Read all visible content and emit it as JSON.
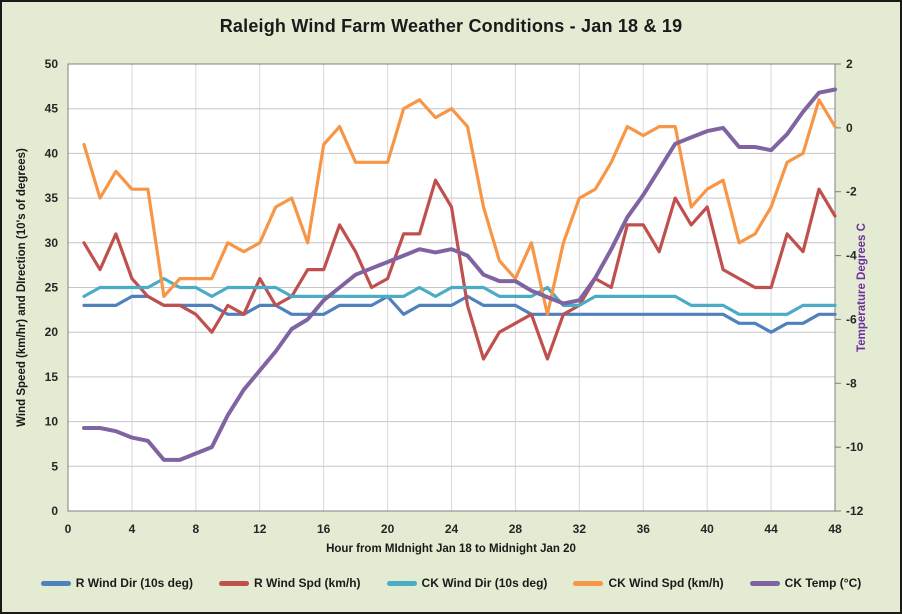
{
  "title": "Raleigh Wind Farm Weather Conditions - Jan 18 & 19",
  "colors": {
    "background": "#e3ebd3",
    "plot_background": "#ffffff",
    "plot_border": "#808080",
    "grid_horizontal": "#c6c6c6",
    "grid_vertical": "#d8d8d8",
    "tick_text": "#262626",
    "title_text": "#1a1a1a",
    "right_axis_label": "#7030a0"
  },
  "chart_data": {
    "type": "line",
    "title": "Raleigh Wind Farm Weather Conditions - Jan 18 & 19",
    "xlabel": "Hour from MIdnight Jan 18 to Midnight Jan 20",
    "ylabel_left": "Wind Speed (km/hr) and DIrection (10's of degrees)",
    "ylabel_right": "Temperature Degrees C",
    "grid": true,
    "legend_position": "bottom",
    "xlim": [
      0,
      48
    ],
    "ylim_left": [
      0,
      50
    ],
    "ylim_right": [
      -12,
      2
    ],
    "x_ticks": [
      0,
      4,
      8,
      12,
      16,
      20,
      24,
      28,
      32,
      36,
      40,
      44,
      48
    ],
    "y_ticks_left": [
      0,
      5,
      10,
      15,
      20,
      25,
      30,
      35,
      40,
      45,
      50
    ],
    "y_ticks_right": [
      2,
      0,
      -2,
      -4,
      -6,
      -8,
      -10,
      -12
    ],
    "x": [
      1,
      2,
      3,
      4,
      5,
      6,
      7,
      8,
      9,
      10,
      11,
      12,
      13,
      14,
      15,
      16,
      17,
      18,
      19,
      20,
      21,
      22,
      23,
      24,
      25,
      26,
      27,
      28,
      29,
      30,
      31,
      32,
      33,
      34,
      35,
      36,
      37,
      38,
      39,
      40,
      41,
      42,
      43,
      44,
      45,
      46,
      47,
      48
    ],
    "series": [
      {
        "name": "R Wind Dir (10s deg)",
        "color": "#4f81bd",
        "axis": "left",
        "values": [
          23,
          23,
          23,
          24,
          24,
          23,
          23,
          23,
          23,
          22,
          22,
          23,
          23,
          22,
          22,
          22,
          23,
          23,
          23,
          24,
          22,
          23,
          23,
          23,
          24,
          23,
          23,
          23,
          22,
          22,
          22,
          22,
          22,
          22,
          22,
          22,
          22,
          22,
          22,
          22,
          22,
          21,
          21,
          20,
          21,
          21,
          22,
          22
        ]
      },
      {
        "name": "R Wind Spd (km/h)",
        "color": "#c0504d",
        "axis": "left",
        "values": [
          30,
          27,
          31,
          26,
          24,
          23,
          23,
          22,
          20,
          23,
          22,
          26,
          23,
          24,
          27,
          27,
          32,
          29,
          25,
          26,
          31,
          31,
          37,
          34,
          23,
          17,
          20,
          21,
          22,
          17,
          22,
          23,
          26,
          25,
          32,
          32,
          29,
          35,
          32,
          34,
          27,
          26,
          25,
          25,
          31,
          29,
          36,
          33
        ]
      },
      {
        "name": "CK Wind Dir (10s deg)",
        "color": "#4bacc6",
        "axis": "left",
        "values": [
          24,
          25,
          25,
          25,
          25,
          26,
          25,
          25,
          24,
          25,
          25,
          25,
          25,
          24,
          24,
          24,
          24,
          24,
          24,
          24,
          24,
          25,
          24,
          25,
          25,
          25,
          24,
          24,
          24,
          25,
          23,
          23,
          24,
          24,
          24,
          24,
          24,
          24,
          23,
          23,
          23,
          22,
          22,
          22,
          22,
          23,
          23,
          23
        ]
      },
      {
        "name": "CK Wind Spd (km/h)",
        "color": "#f79646",
        "axis": "left",
        "values": [
          41,
          35,
          38,
          36,
          36,
          24,
          26,
          26,
          26,
          30,
          29,
          30,
          34,
          35,
          30,
          41,
          43,
          39,
          39,
          39,
          45,
          46,
          44,
          45,
          43,
          34,
          28,
          26,
          30,
          22,
          30,
          35,
          36,
          39,
          43,
          42,
          43,
          43,
          34,
          36,
          37,
          30,
          31,
          34,
          39,
          40,
          46,
          43
        ]
      },
      {
        "name": "CK Temp (°C)",
        "color": "#8064a2",
        "axis": "right",
        "values": [
          -9.4,
          -9.4,
          -9.5,
          -9.7,
          -9.8,
          -10.4,
          -10.4,
          -10.2,
          -10,
          -9,
          -8.2,
          -7.6,
          -7,
          -6.3,
          -6,
          -5.4,
          -5,
          -4.6,
          -4.4,
          -4.2,
          -4,
          -3.8,
          -3.9,
          -3.8,
          -4,
          -4.6,
          -4.8,
          -4.8,
          -5.1,
          -5.3,
          -5.5,
          -5.4,
          -4.7,
          -3.8,
          -2.8,
          -2.1,
          -1.3,
          -0.5,
          -0.3,
          -0.1,
          0,
          -0.6,
          -0.6,
          -0.7,
          -0.2,
          0.5,
          1.1,
          1.2
        ]
      }
    ]
  }
}
